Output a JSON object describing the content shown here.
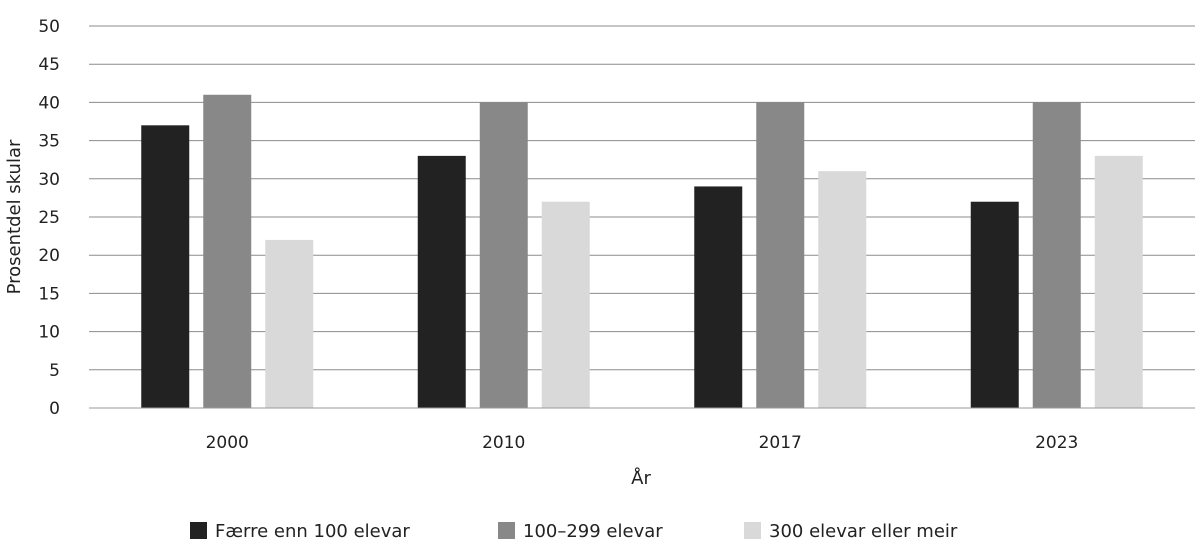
{
  "chart_data": {
    "type": "bar",
    "categories": [
      "2000",
      "2010",
      "2017",
      "2023"
    ],
    "series": [
      {
        "name": "Færre enn 100 elevar",
        "values": [
          37,
          33,
          29,
          27
        ],
        "color": "#222222"
      },
      {
        "name": "100–299 elevar",
        "values": [
          41,
          40,
          40,
          40
        ],
        "color": "#888888"
      },
      {
        "name": "300 elevar eller meir",
        "values": [
          22,
          27,
          31,
          33
        ],
        "color": "#d9d9d9"
      }
    ],
    "xlabel": "År",
    "ylabel": "Prosentdel skular",
    "ylim": [
      0,
      50
    ],
    "yticks": [
      0,
      5,
      10,
      15,
      20,
      25,
      30,
      35,
      40,
      45,
      50
    ],
    "grid": true,
    "legend": "bottom"
  }
}
